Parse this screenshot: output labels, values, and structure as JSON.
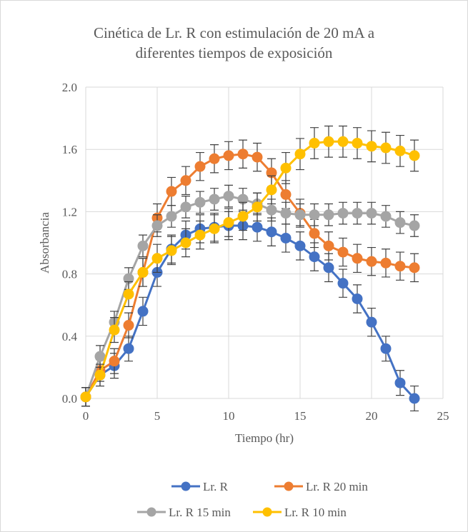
{
  "chart_data": {
    "type": "line",
    "title_line1": "Cinética de Lr. R con estimulación de 20 mA a",
    "title_line2": "diferentes tiempos de exposición",
    "xlabel": "Tiempo (hr)",
    "ylabel": "Absorbancia",
    "xlim": [
      0,
      25
    ],
    "ylim": [
      0,
      2.0
    ],
    "x_ticks": [
      "0",
      "5",
      "10",
      "15",
      "20",
      "25"
    ],
    "y_ticks": [
      "0.0",
      "0.4",
      "0.8",
      "1.2",
      "1.6",
      "2.0"
    ],
    "grid": true,
    "legend_position": "bottom",
    "x": [
      0,
      1,
      2,
      3,
      4,
      5,
      6,
      7,
      8,
      9,
      10,
      11,
      12,
      13,
      14,
      15,
      16,
      17,
      18,
      19,
      20,
      21,
      22,
      23
    ],
    "series": [
      {
        "name": "Lr. R",
        "color": "#4472c4",
        "values": [
          0.01,
          0.15,
          0.21,
          0.32,
          0.56,
          0.81,
          0.96,
          1.05,
          1.09,
          1.1,
          1.11,
          1.11,
          1.1,
          1.07,
          1.03,
          0.98,
          0.91,
          0.84,
          0.74,
          0.64,
          0.49,
          0.32,
          0.1,
          0.0
        ],
        "errors": [
          0.06,
          0.07,
          0.08,
          0.08,
          0.09,
          0.09,
          0.09,
          0.09,
          0.09,
          0.09,
          0.09,
          0.09,
          0.09,
          0.09,
          0.09,
          0.09,
          0.09,
          0.09,
          0.09,
          0.09,
          0.09,
          0.08,
          0.08,
          0.08
        ]
      },
      {
        "name": "Lr. R 20 min",
        "color": "#ed7d31",
        "values": [
          0.01,
          0.18,
          0.24,
          0.47,
          0.81,
          1.16,
          1.33,
          1.4,
          1.49,
          1.54,
          1.56,
          1.57,
          1.55,
          1.45,
          1.31,
          1.19,
          1.06,
          0.98,
          0.94,
          0.9,
          0.88,
          0.87,
          0.85,
          0.84
        ],
        "errors": [
          0.06,
          0.07,
          0.08,
          0.08,
          0.09,
          0.09,
          0.09,
          0.09,
          0.09,
          0.09,
          0.09,
          0.09,
          0.09,
          0.09,
          0.09,
          0.09,
          0.09,
          0.09,
          0.09,
          0.09,
          0.09,
          0.09,
          0.09,
          0.09
        ]
      },
      {
        "name": "Lr. R 15 min",
        "color": "#a5a5a5",
        "values": [
          0.01,
          0.27,
          0.49,
          0.77,
          0.98,
          1.11,
          1.17,
          1.23,
          1.26,
          1.28,
          1.3,
          1.28,
          1.25,
          1.21,
          1.19,
          1.18,
          1.18,
          1.18,
          1.19,
          1.19,
          1.19,
          1.17,
          1.13,
          1.11
        ],
        "errors": [
          0.06,
          0.07,
          0.07,
          0.07,
          0.07,
          0.07,
          0.07,
          0.07,
          0.07,
          0.07,
          0.07,
          0.07,
          0.07,
          0.07,
          0.07,
          0.07,
          0.07,
          0.07,
          0.07,
          0.07,
          0.07,
          0.07,
          0.07,
          0.07
        ]
      },
      {
        "name": "Lr. R 10 min",
        "color": "#ffc000",
        "values": [
          0.01,
          0.15,
          0.44,
          0.67,
          0.81,
          0.9,
          0.95,
          1.0,
          1.05,
          1.09,
          1.13,
          1.17,
          1.23,
          1.34,
          1.48,
          1.57,
          1.64,
          1.65,
          1.65,
          1.64,
          1.62,
          1.61,
          1.59,
          1.56
        ],
        "errors": [
          0.06,
          0.07,
          0.08,
          0.08,
          0.09,
          0.09,
          0.09,
          0.09,
          0.09,
          0.09,
          0.09,
          0.09,
          0.09,
          0.09,
          0.1,
          0.1,
          0.1,
          0.1,
          0.1,
          0.1,
          0.1,
          0.1,
          0.1,
          0.1
        ]
      }
    ]
  }
}
